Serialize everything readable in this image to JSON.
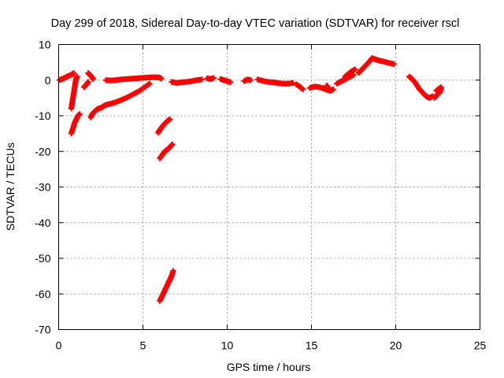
{
  "chart_data": {
    "type": "scatter",
    "title": "Day 299 of 2018, Sidereal Day-to-day VTEC variation (SDTVAR) for receiver rscl",
    "xlabel": "GPS time / hours",
    "ylabel": "SDTVAR / TECUs",
    "xlim": [
      0,
      25
    ],
    "ylim": [
      -70,
      10
    ],
    "xticks": [
      0,
      5,
      10,
      15,
      20,
      25
    ],
    "yticks": [
      -70,
      -60,
      -50,
      -40,
      -30,
      -20,
      -10,
      0,
      10
    ],
    "xtick_labels": [
      "0",
      "5",
      "10",
      "15",
      "20",
      "25"
    ],
    "ytick_labels": [
      "-70",
      "-60",
      "-50",
      "-40",
      "-30",
      "-20",
      "-10",
      "0",
      "10"
    ],
    "grid": true,
    "legend": "none",
    "marker": "plus",
    "color": "#ff0000",
    "segments": [
      {
        "x": [
          0.05,
          0.2,
          0.35,
          0.5,
          0.65,
          0.8,
          0.9
        ],
        "y": [
          0.0,
          0.3,
          0.6,
          1.0,
          1.3,
          1.6,
          2.0
        ]
      },
      {
        "x": [
          0.75,
          0.8,
          0.85,
          0.9,
          0.95,
          1.0,
          1.05,
          1.1
        ],
        "y": [
          -8.0,
          -6.5,
          -5.0,
          -3.5,
          -2.0,
          -0.5,
          0.5,
          1.0
        ]
      },
      {
        "x": [
          0.75,
          0.85,
          0.95,
          1.05,
          1.15,
          1.25
        ],
        "y": [
          -15.0,
          -13.5,
          -12.0,
          -11.0,
          -10.0,
          -9.5
        ]
      },
      {
        "x": [
          1.5,
          1.6,
          1.7,
          1.75
        ],
        "y": [
          -2.0,
          -1.5,
          -1.0,
          -0.5
        ]
      },
      {
        "x": [
          1.75,
          1.85,
          1.95,
          2.05
        ],
        "y": [
          2.0,
          1.5,
          1.0,
          0.3
        ]
      },
      {
        "x": [
          1.9,
          2.0,
          2.1,
          2.2,
          2.35,
          2.5,
          2.7,
          2.9,
          3.2,
          3.6,
          4.0,
          4.4,
          4.8,
          5.1,
          5.4
        ],
        "y": [
          -10.5,
          -9.5,
          -9.0,
          -8.5,
          -8.0,
          -7.8,
          -7.2,
          -6.8,
          -6.5,
          -5.8,
          -5.0,
          -4.0,
          -3.0,
          -2.0,
          -1.0
        ]
      },
      {
        "x": [
          2.8,
          3.1,
          3.4,
          3.7,
          4.0,
          4.3,
          4.6,
          4.9,
          5.2,
          5.5,
          5.8,
          6.0,
          6.1
        ],
        "y": [
          0.0,
          -0.1,
          0.0,
          0.2,
          0.3,
          0.4,
          0.5,
          0.6,
          0.7,
          0.8,
          0.8,
          0.7,
          0.4
        ]
      },
      {
        "x": [
          5.9,
          6.0,
          6.15,
          6.3,
          6.45,
          6.6
        ],
        "y": [
          -14.8,
          -14.0,
          -13.0,
          -12.2,
          -11.5,
          -11.0
        ]
      },
      {
        "x": [
          6.0,
          6.15,
          6.3,
          6.45,
          6.6,
          6.75
        ],
        "y": [
          -22.0,
          -21.0,
          -20.0,
          -19.5,
          -18.8,
          -18.0
        ]
      },
      {
        "x": [
          6.0,
          6.1,
          6.2,
          6.3,
          6.4,
          6.5,
          6.6,
          6.7,
          6.8
        ],
        "y": [
          -62.0,
          -61.0,
          -60.0,
          -59.0,
          -58.0,
          -57.0,
          -56.0,
          -55.0,
          -53.5
        ]
      },
      {
        "x": [
          6.7,
          7.0,
          7.3,
          7.6,
          7.9,
          8.2,
          8.5
        ],
        "y": [
          -0.5,
          -0.8,
          -0.6,
          -0.5,
          -0.3,
          0.0,
          0.2
        ]
      },
      {
        "x": [
          8.8,
          9.0,
          9.2
        ],
        "y": [
          0.5,
          0.3,
          0.6
        ]
      },
      {
        "x": [
          9.6,
          9.8,
          10.0,
          10.2
        ],
        "y": [
          0.3,
          0.0,
          -0.3,
          -0.6
        ]
      },
      {
        "x": [
          11.0,
          11.2,
          11.4
        ],
        "y": [
          -0.3,
          0.2,
          0.0
        ]
      },
      {
        "x": [
          11.8,
          12.1,
          12.4,
          12.7,
          13.0,
          13.3,
          13.6,
          13.9
        ],
        "y": [
          0.2,
          -0.2,
          -0.5,
          -0.6,
          -0.8,
          -1.0,
          -1.0,
          -0.8
        ]
      },
      {
        "x": [
          14.1,
          14.3,
          14.5
        ],
        "y": [
          -1.2,
          -1.8,
          -2.6
        ]
      },
      {
        "x": [
          14.9,
          15.2,
          15.5,
          15.8,
          16.1,
          16.3
        ],
        "y": [
          -2.2,
          -1.8,
          -2.0,
          -2.5,
          -3.0,
          -2.6
        ]
      },
      {
        "x": [
          15.9,
          16.0,
          16.1
        ],
        "y": [
          -1.5,
          -2.2,
          -3.0
        ]
      },
      {
        "x": [
          16.5,
          16.7,
          16.9,
          17.1,
          17.3,
          17.5
        ],
        "y": [
          -1.0,
          -0.5,
          0.0,
          0.5,
          1.0,
          1.5
        ]
      },
      {
        "x": [
          17.0,
          17.2,
          17.4,
          17.6
        ],
        "y": [
          1.0,
          1.8,
          2.5,
          3.0
        ]
      },
      {
        "x": [
          17.8,
          18.0,
          18.2,
          18.4,
          18.6,
          18.8,
          19.0,
          19.3,
          19.6,
          19.9
        ],
        "y": [
          2.0,
          3.0,
          4.0,
          5.0,
          6.2,
          5.8,
          5.5,
          5.2,
          4.8,
          4.5
        ]
      },
      {
        "x": [
          20.8,
          21.0,
          21.2,
          21.4,
          21.6,
          21.8,
          22.0,
          22.2
        ],
        "y": [
          1.0,
          0.2,
          -1.0,
          -2.5,
          -3.5,
          -4.5,
          -5.0,
          -4.5
        ]
      },
      {
        "x": [
          22.3,
          22.45,
          22.6,
          22.7
        ],
        "y": [
          -5.0,
          -4.2,
          -3.5,
          -2.5
        ]
      },
      {
        "x": [
          22.4,
          22.55,
          22.7
        ],
        "y": [
          -3.0,
          -2.5,
          -2.0
        ]
      }
    ]
  }
}
